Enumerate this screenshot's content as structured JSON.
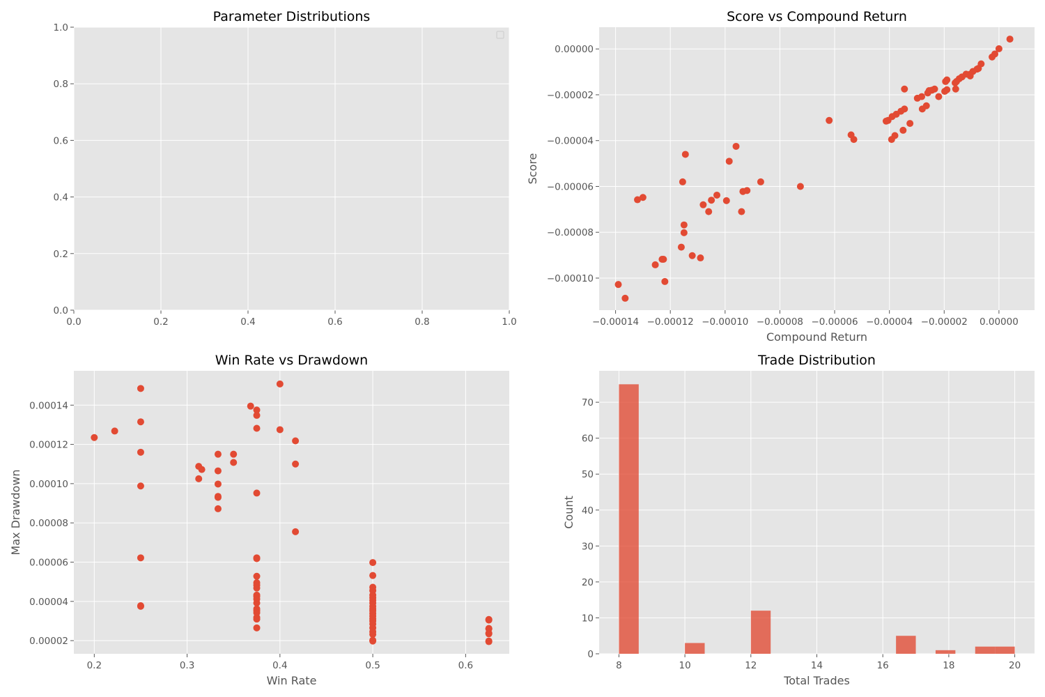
{
  "colors": {
    "panel_bg": "#e5e5e5",
    "grid": "#ffffff",
    "marker": "#e24a33",
    "text": "#555555",
    "title": "#000000"
  },
  "chart_data": [
    {
      "type": "bar",
      "title": "Parameter Distributions",
      "xlabel": "",
      "ylabel": "",
      "xlim": [
        0,
        1
      ],
      "ylim": [
        0,
        1
      ],
      "xticks": [
        0.0,
        0.2,
        0.4,
        0.6,
        0.8,
        1.0
      ],
      "yticks": [
        0.0,
        0.2,
        0.4,
        0.6,
        0.8,
        1.0
      ],
      "xtick_labels": [
        "0.0",
        "0.2",
        "0.4",
        "0.6",
        "0.8",
        "1.0"
      ],
      "ytick_labels": [
        "0.0",
        "0.2",
        "0.4",
        "0.6",
        "0.8",
        "1.0"
      ],
      "grid": true,
      "legend": "upper-right (empty)",
      "series": []
    },
    {
      "type": "scatter",
      "title": "Score vs Compound Return",
      "xlabel": "Compound Return",
      "ylabel": "Score",
      "xlim": [
        -0.000146,
        1.3e-05
      ],
      "ylim": [
        -0.000114,
        9.5e-06
      ],
      "xticks": [
        -0.00014,
        -0.00012,
        -0.0001,
        -8e-05,
        -6e-05,
        -4e-05,
        -2e-05,
        0.0
      ],
      "xtick_labels": [
        "−0.00014",
        "−0.00012",
        "−0.00010",
        "−0.00008",
        "−0.00006",
        "−0.00004",
        "−0.00002",
        "0.00000"
      ],
      "yticks": [
        -0.0001,
        -8e-05,
        -6e-05,
        -4e-05,
        -2e-05,
        0.0
      ],
      "ytick_labels": [
        "−0.00010",
        "−0.00008",
        "−0.00006",
        "−0.00004",
        "−0.00002",
        "0.00000"
      ],
      "grid": true,
      "points": [
        [
          4e-06,
          4.3e-06
        ],
        [
          0.0,
          1e-07
        ],
        [
          -1.5e-06,
          -2.2e-06
        ],
        [
          -2.5e-06,
          -3.5e-06
        ],
        [
          -6.5e-06,
          -6.5e-06
        ],
        [
          -7.5e-06,
          -8.5e-06
        ],
        [
          -8e-06,
          -8.8e-06
        ],
        [
          -9.5e-06,
          -9.8e-06
        ],
        [
          -1.05e-05,
          -1.1e-05
        ],
        [
          -1.05e-05,
          -1.18e-05
        ],
        [
          -1.2e-05,
          -1.1e-05
        ],
        [
          -1.35e-05,
          -1.22e-05
        ],
        [
          -1.45e-05,
          -1.3e-05
        ],
        [
          -1.55e-05,
          -1.42e-05
        ],
        [
          -1.6e-05,
          -1.48e-05
        ],
        [
          -1.58e-05,
          -1.75e-05
        ],
        [
          -1.9e-05,
          -1.35e-05
        ],
        [
          -1.95e-05,
          -1.42e-05
        ],
        [
          -1.9e-05,
          -1.78e-05
        ],
        [
          -1.98e-05,
          -1.85e-05
        ],
        [
          -2.2e-05,
          -2.08e-05
        ],
        [
          -2.35e-05,
          -1.75e-05
        ],
        [
          -2.45e-05,
          -1.8e-05
        ],
        [
          -2.55e-05,
          -1.82e-05
        ],
        [
          -2.6e-05,
          -1.92e-05
        ],
        [
          -2.65e-05,
          -2.48e-05
        ],
        [
          -2.8e-05,
          -2.62e-05
        ],
        [
          -2.82e-05,
          -2.08e-05
        ],
        [
          -2.98e-05,
          -2.15e-05
        ],
        [
          -3.25e-05,
          -3.25e-05
        ],
        [
          -3.45e-05,
          -2.62e-05
        ],
        [
          -3.45e-05,
          -1.75e-05
        ],
        [
          -3.5e-05,
          -3.55e-05
        ],
        [
          -3.58e-05,
          -2.72e-05
        ],
        [
          -3.75e-05,
          -2.85e-05
        ],
        [
          -3.8e-05,
          -3.78e-05
        ],
        [
          -3.9e-05,
          -2.95e-05
        ],
        [
          -3.92e-05,
          -3.95e-05
        ],
        [
          -4.05e-05,
          -3.12e-05
        ],
        [
          -4.12e-05,
          -3.15e-05
        ],
        [
          -5.3e-05,
          -3.95e-05
        ],
        [
          -5.4e-05,
          -3.75e-05
        ],
        [
          -6.2e-05,
          -3.12e-05
        ],
        [
          -7.25e-05,
          -6e-05
        ],
        [
          -8.7e-05,
          -5.8e-05
        ],
        [
          -9.2e-05,
          -6.18e-05
        ],
        [
          -9.35e-05,
          -6.22e-05
        ],
        [
          -9.4e-05,
          -7.1e-05
        ],
        [
          -9.6e-05,
          -4.25e-05
        ],
        [
          -9.85e-05,
          -4.9e-05
        ],
        [
          -9.95e-05,
          -6.62e-05
        ],
        [
          -0.000103,
          -6.38e-05
        ],
        [
          -0.000105,
          -6.6e-05
        ],
        [
          -0.000106,
          -7.1e-05
        ],
        [
          -0.000108,
          -6.8e-05
        ],
        [
          -0.000109,
          -9.12e-05
        ],
        [
          -0.000112,
          -9.02e-05
        ],
        [
          -0.0001145,
          -4.6e-05
        ],
        [
          -0.000115,
          -7.68e-05
        ],
        [
          -0.000115,
          -8.02e-05
        ],
        [
          -0.0001155,
          -5.8e-05
        ],
        [
          -0.000116,
          -8.65e-05
        ],
        [
          -0.000122,
          -0.0001015
        ],
        [
          -0.000123,
          -9.18e-05
        ],
        [
          -0.0001225,
          -9.18e-05
        ],
        [
          -0.0001255,
          -9.42e-05
        ],
        [
          -0.00013,
          -6.48e-05
        ],
        [
          -0.000132,
          -6.58e-05
        ],
        [
          -0.0001365,
          -0.0001088
        ],
        [
          -0.000139,
          -0.0001028
        ]
      ]
    },
    {
      "type": "scatter",
      "title": "Win Rate vs Drawdown",
      "xlabel": "Win Rate",
      "ylabel": "Max Drawdown",
      "xlim": [
        0.178,
        0.647
      ],
      "ylim": [
        1.33e-05,
        0.0001575
      ],
      "xticks": [
        0.2,
        0.3,
        0.4,
        0.5,
        0.6
      ],
      "xtick_labels": [
        "0.2",
        "0.3",
        "0.4",
        "0.5",
        "0.6"
      ],
      "yticks": [
        2e-05,
        4e-05,
        6e-05,
        8e-05,
        0.0001,
        0.00012,
        0.00014
      ],
      "ytick_labels": [
        "0.00002",
        "0.00004",
        "0.00006",
        "0.00008",
        "0.00010",
        "0.00012",
        "0.00014"
      ],
      "grid": true,
      "points": [
        [
          0.2,
          0.0001235
        ],
        [
          0.222,
          0.0001268
        ],
        [
          0.25,
          0.0001485
        ],
        [
          0.25,
          0.0001315
        ],
        [
          0.25,
          0.000116
        ],
        [
          0.25,
          9.88e-05
        ],
        [
          0.25,
          6.22e-05
        ],
        [
          0.25,
          3.78e-05
        ],
        [
          0.25,
          3.75e-05
        ],
        [
          0.3125,
          0.0001088
        ],
        [
          0.3125,
          0.0001025
        ],
        [
          0.3158,
          0.0001072
        ],
        [
          0.3333,
          0.000115
        ],
        [
          0.3333,
          0.0001065
        ],
        [
          0.3333,
          9.98e-05
        ],
        [
          0.3333,
          9.35e-05
        ],
        [
          0.3333,
          9.3e-05
        ],
        [
          0.3333,
          8.72e-05
        ],
        [
          0.35,
          0.000115
        ],
        [
          0.35,
          0.0001108
        ],
        [
          0.3684,
          0.0001395
        ],
        [
          0.375,
          0.0001375
        ],
        [
          0.375,
          0.0001348
        ],
        [
          0.375,
          0.0001282
        ],
        [
          0.375,
          9.52e-05
        ],
        [
          0.375,
          6.22e-05
        ],
        [
          0.375,
          6.18e-05
        ],
        [
          0.375,
          5.28e-05
        ],
        [
          0.375,
          4.95e-05
        ],
        [
          0.375,
          4.82e-05
        ],
        [
          0.375,
          4.68e-05
        ],
        [
          0.375,
          4.32e-05
        ],
        [
          0.375,
          4.25e-05
        ],
        [
          0.375,
          4.12e-05
        ],
        [
          0.375,
          3.92e-05
        ],
        [
          0.375,
          3.62e-05
        ],
        [
          0.375,
          3.52e-05
        ],
        [
          0.375,
          3.42e-05
        ],
        [
          0.375,
          3.18e-05
        ],
        [
          0.375,
          3.1e-05
        ],
        [
          0.375,
          2.65e-05
        ],
        [
          0.4,
          0.0001508
        ],
        [
          0.4,
          0.0001275
        ],
        [
          0.4167,
          0.0001218
        ],
        [
          0.4167,
          0.00011
        ],
        [
          0.4167,
          7.55e-05
        ],
        [
          0.5,
          5.98e-05
        ],
        [
          0.5,
          5.32e-05
        ],
        [
          0.5,
          4.72e-05
        ],
        [
          0.5,
          4.55e-05
        ],
        [
          0.5,
          4.32e-05
        ],
        [
          0.5,
          4.18e-05
        ],
        [
          0.5,
          4.05e-05
        ],
        [
          0.5,
          3.92e-05
        ],
        [
          0.5,
          3.75e-05
        ],
        [
          0.5,
          3.62e-05
        ],
        [
          0.5,
          3.52e-05
        ],
        [
          0.5,
          3.38e-05
        ],
        [
          0.5,
          3.25e-05
        ],
        [
          0.5,
          3.12e-05
        ],
        [
          0.5,
          3e-05
        ],
        [
          0.5,
          2.85e-05
        ],
        [
          0.5,
          2.65e-05
        ],
        [
          0.5,
          2.45e-05
        ],
        [
          0.5,
          2.32e-05
        ],
        [
          0.5,
          2.02e-05
        ],
        [
          0.5,
          1.98e-05
        ],
        [
          0.625,
          3.08e-05
        ],
        [
          0.625,
          3.05e-05
        ],
        [
          0.625,
          2.62e-05
        ],
        [
          0.625,
          2.6e-05
        ],
        [
          0.625,
          2.38e-05
        ],
        [
          0.625,
          2.35e-05
        ],
        [
          0.625,
          1.98e-05
        ],
        [
          0.625,
          1.95e-05
        ]
      ]
    },
    {
      "type": "bar",
      "title": "Trade Distribution",
      "xlabel": "Total Trades",
      "ylabel": "Count",
      "xlim": [
        7.4,
        20.6
      ],
      "ylim": [
        0,
        78.75
      ],
      "xticks": [
        8,
        10,
        12,
        14,
        16,
        18,
        20
      ],
      "xtick_labels": [
        "8",
        "10",
        "12",
        "14",
        "16",
        "18",
        "20"
      ],
      "yticks": [
        0,
        10,
        20,
        30,
        40,
        50,
        60,
        70
      ],
      "ytick_labels": [
        "0",
        "10",
        "20",
        "30",
        "40",
        "50",
        "60",
        "70"
      ],
      "grid": true,
      "bin_width": 0.6,
      "bins": [
        {
          "start": 8.0,
          "count": 75
        },
        {
          "start": 10.0,
          "count": 3
        },
        {
          "start": 12.0,
          "count": 12
        },
        {
          "start": 16.4,
          "count": 5
        },
        {
          "start": 17.6,
          "count": 1
        },
        {
          "start": 18.8,
          "count": 2
        },
        {
          "start": 19.4,
          "count": 2
        }
      ]
    }
  ]
}
